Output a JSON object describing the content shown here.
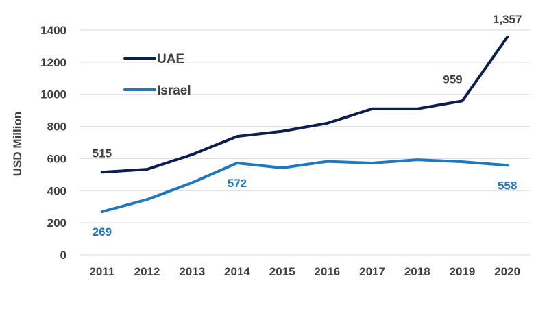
{
  "chart_data": {
    "type": "line",
    "title": "",
    "xlabel": "",
    "ylabel": "USD Million",
    "x": [
      "2011",
      "2012",
      "2013",
      "2014",
      "2015",
      "2016",
      "2017",
      "2018",
      "2019",
      "2020"
    ],
    "ylim": [
      0,
      1400
    ],
    "yticks": [
      "0",
      "200",
      "400",
      "600",
      "800",
      "1000",
      "1200",
      "1400"
    ],
    "grid": true,
    "legend_position": "top-left",
    "series": [
      {
        "name": "UAE",
        "color": "#0b1f4f",
        "values": [
          515,
          533,
          625,
          738,
          770,
          820,
          910,
          910,
          959,
          1357
        ]
      },
      {
        "name": "Israel",
        "color": "#1f77c0",
        "values": [
          269,
          345,
          450,
          572,
          542,
          582,
          572,
          593,
          580,
          558
        ]
      }
    ],
    "annotations": [
      {
        "series": "UAE",
        "index": 0,
        "text": "515"
      },
      {
        "series": "UAE",
        "index": 8,
        "text": "959"
      },
      {
        "series": "UAE",
        "index": 9,
        "text": "1,357"
      },
      {
        "series": "Israel",
        "index": 0,
        "text": "269"
      },
      {
        "series": "Israel",
        "index": 3,
        "text": "572"
      },
      {
        "series": "Israel",
        "index": 9,
        "text": "558"
      }
    ]
  }
}
